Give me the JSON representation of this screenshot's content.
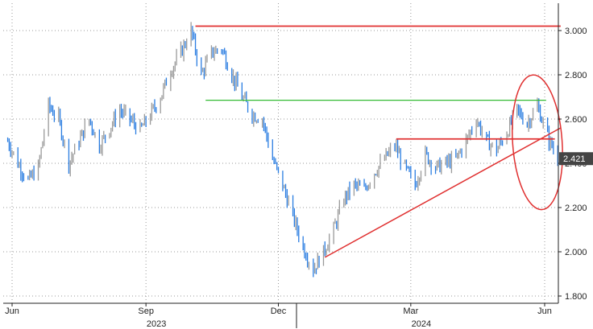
{
  "chart_data": {
    "type": "bar",
    "subtype": "ohlc-price",
    "title": "",
    "xlabel": "",
    "ylabel": "",
    "ylim": [
      1.78,
      3.13
    ],
    "grid": true,
    "y_axis_side": "right",
    "y_ticks": [
      "1.800",
      "2.000",
      "2.200",
      "2.400",
      "2.600",
      "2.800",
      "3.000"
    ],
    "x_ticks": [
      {
        "label": "Jun",
        "date": "2023-06-01"
      },
      {
        "label": "Sep",
        "date": "2023-09-01"
      },
      {
        "label": "Dec",
        "date": "2023-12-01"
      },
      {
        "label": "Mar",
        "date": "2024-03-01"
      },
      {
        "label": "Jun",
        "date": "2024-06-01"
      }
    ],
    "year_labels": [
      {
        "label": "2023",
        "date": "2023-09-01"
      },
      {
        "label": "2024",
        "date": "2024-03-01"
      }
    ],
    "x_range": [
      "2023-05-29",
      "2024-06-10"
    ],
    "last_value": {
      "label": "2.421",
      "value": 2.421,
      "color": "#444444"
    },
    "colors": {
      "up": "#9a9a9a",
      "down": "#2a7de1",
      "annotation_red": "#e03030",
      "annotation_green": "#33bb33"
    },
    "series": [
      {
        "points": [
          [
            "2023-05-29",
            2.5
          ],
          [
            "2023-06-05",
            2.4
          ],
          [
            "2023-06-12",
            2.32
          ],
          [
            "2023-06-19",
            2.38
          ],
          [
            "2023-06-26",
            2.66
          ],
          [
            "2023-07-03",
            2.6
          ],
          [
            "2023-07-10",
            2.4
          ],
          [
            "2023-07-17",
            2.5
          ],
          [
            "2023-07-24",
            2.6
          ],
          [
            "2023-07-31",
            2.48
          ],
          [
            "2023-08-07",
            2.56
          ],
          [
            "2023-08-14",
            2.64
          ],
          [
            "2023-08-21",
            2.6
          ],
          [
            "2023-08-28",
            2.55
          ],
          [
            "2023-09-04",
            2.62
          ],
          [
            "2023-09-11",
            2.7
          ],
          [
            "2023-09-18",
            2.82
          ],
          [
            "2023-09-25",
            2.9
          ],
          [
            "2023-10-02",
            3.0
          ],
          [
            "2023-10-09",
            2.8
          ],
          [
            "2023-10-16",
            2.9
          ],
          [
            "2023-10-23",
            2.92
          ],
          [
            "2023-10-30",
            2.8
          ],
          [
            "2023-11-06",
            2.7
          ],
          [
            "2023-11-13",
            2.62
          ],
          [
            "2023-11-20",
            2.6
          ],
          [
            "2023-11-27",
            2.42
          ],
          [
            "2023-12-04",
            2.3
          ],
          [
            "2023-12-11",
            2.16
          ],
          [
            "2023-12-18",
            2.02
          ],
          [
            "2023-12-25",
            1.92
          ],
          [
            "2024-01-01",
            2.0
          ],
          [
            "2024-01-08",
            2.1
          ],
          [
            "2024-01-15",
            2.24
          ],
          [
            "2024-01-22",
            2.3
          ],
          [
            "2024-01-29",
            2.28
          ],
          [
            "2024-02-05",
            2.36
          ],
          [
            "2024-02-12",
            2.42
          ],
          [
            "2024-02-19",
            2.48
          ],
          [
            "2024-02-26",
            2.38
          ],
          [
            "2024-03-04",
            2.3
          ],
          [
            "2024-03-11",
            2.44
          ],
          [
            "2024-03-18",
            2.38
          ],
          [
            "2024-03-25",
            2.4
          ],
          [
            "2024-04-01",
            2.42
          ],
          [
            "2024-04-08",
            2.5
          ],
          [
            "2024-04-15",
            2.6
          ],
          [
            "2024-04-22",
            2.5
          ],
          [
            "2024-04-29",
            2.46
          ],
          [
            "2024-05-06",
            2.54
          ],
          [
            "2024-05-13",
            2.64
          ],
          [
            "2024-05-20",
            2.58
          ],
          [
            "2024-05-27",
            2.66
          ],
          [
            "2024-06-03",
            2.52
          ],
          [
            "2024-06-10",
            2.42
          ]
        ]
      }
    ],
    "annotations": [
      {
        "kind": "hline",
        "color": "#e03030",
        "x0": "2023-10-05",
        "x1": "2024-06-12",
        "y": 3.02
      },
      {
        "kind": "hline",
        "color": "#33bb33",
        "x0": "2023-10-12",
        "x1": "2024-06-02",
        "y": 2.685
      },
      {
        "kind": "hline",
        "color": "#e03030",
        "x0": "2024-02-20",
        "x1": "2024-06-08",
        "y": 2.51
      },
      {
        "kind": "trendline",
        "color": "#e03030",
        "x0": "2024-01-02",
        "y0": 1.975,
        "x1": "2024-06-12",
        "y1": 2.56
      },
      {
        "kind": "ellipse",
        "color": "#e03030",
        "x_center": "2024-05-27",
        "y_center": 2.495,
        "x_radius_days": 17,
        "y_radius": 0.305
      }
    ]
  }
}
